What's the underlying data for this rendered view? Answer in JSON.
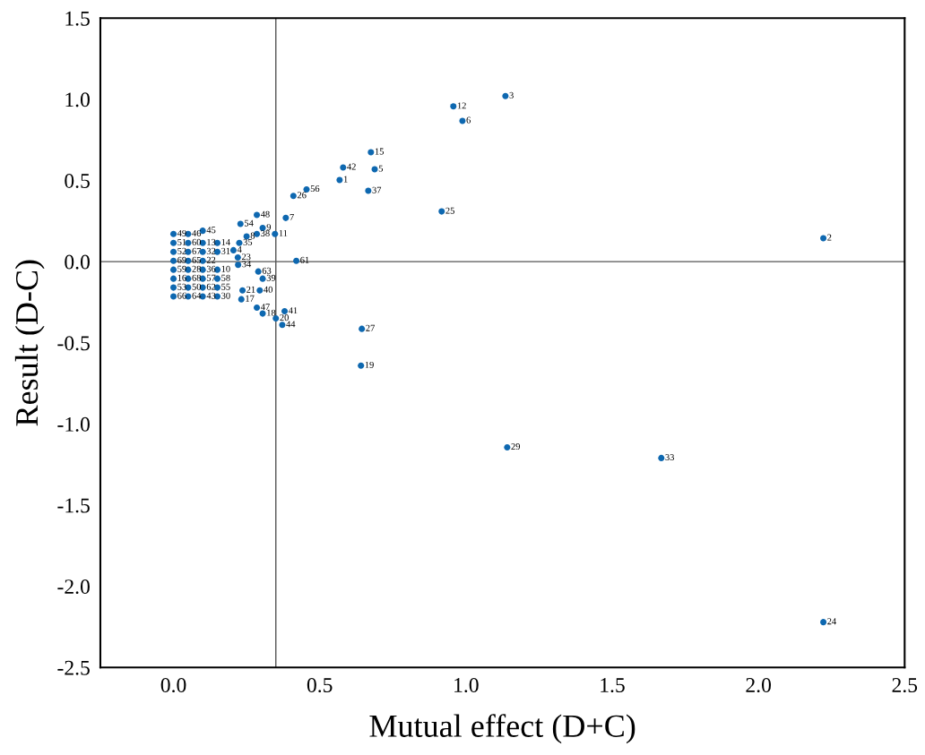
{
  "chart_data": {
    "type": "scatter",
    "xlabel": "Mutual effect (D+C)",
    "ylabel": "Result (D-C)",
    "xlim": [
      -0.25,
      2.5
    ],
    "ylim": [
      -2.5,
      1.5
    ],
    "xticks": [
      {
        "value": 0,
        "label": "0.0"
      },
      {
        "value": 0.5,
        "label": "0.5"
      },
      {
        "value": 1,
        "label": "1.0"
      },
      {
        "value": 1.5,
        "label": "1.5"
      },
      {
        "value": 2,
        "label": "2.0"
      },
      {
        "value": 2.5,
        "label": "2.5"
      }
    ],
    "yticks": [
      {
        "value": -2.5,
        "label": "-2.5"
      },
      {
        "value": -2,
        "label": "-2.0"
      },
      {
        "value": -1.5,
        "label": "-1.5"
      },
      {
        "value": -1,
        "label": "-1.0"
      },
      {
        "value": -0.5,
        "label": "-0.5"
      },
      {
        "value": 0,
        "label": "0.0"
      },
      {
        "value": 0.5,
        "label": "0.5"
      },
      {
        "value": 1,
        "label": "1.0"
      },
      {
        "value": 1.5,
        "label": "1.5"
      }
    ],
    "grid": false,
    "legend": false,
    "marker": "circle",
    "ref_lines": [
      {
        "axis": "x",
        "value": 0.35,
        "color": "#555555"
      },
      {
        "axis": "y",
        "value": 0,
        "color": "#555555"
      }
    ],
    "series": [
      {
        "color": "#0e68b0",
        "x": [
          0.568,
          2.222,
          1.135,
          0.205,
          0.688,
          0.988,
          0.384,
          0.25,
          0.305,
          0.15,
          0.347,
          0.957,
          0.1,
          0.15,
          0.675,
          0.0,
          0.232,
          0.305,
          0.641,
          0.35,
          0.236,
          0.1,
          0.22,
          2.222,
          0.917,
          0.41,
          0.644,
          0.05,
          1.141,
          0.15,
          0.15,
          0.1,
          1.668,
          0.221,
          0.225,
          0.1,
          0.666,
          0.285,
          0.305,
          0.295,
          0.38,
          0.58,
          0.1,
          0.372,
          0.1,
          0.05,
          0.285,
          0.285,
          0.0,
          0.05,
          0.0,
          0.0,
          0.0,
          0.229,
          0.15,
          0.455,
          0.1,
          0.15,
          0.0,
          0.05,
          0.42,
          0.1,
          0.29,
          0.05,
          0.05,
          0.0,
          0.05,
          0.05,
          0.0
        ],
        "values": [
          0.503,
          0.144,
          1.02,
          0.07,
          0.569,
          0.867,
          0.269,
          0.155,
          0.207,
          -0.05,
          0.17,
          0.956,
          0.115,
          0.115,
          0.674,
          -0.105,
          -0.232,
          -0.32,
          -0.641,
          -0.35,
          -0.177,
          0.005,
          0.025,
          -2.221,
          0.309,
          0.405,
          -0.414,
          -0.05,
          -1.144,
          -0.215,
          0.06,
          0.06,
          -1.21,
          -0.02,
          0.115,
          -0.05,
          0.436,
          0.17,
          -0.105,
          -0.177,
          -0.306,
          0.58,
          -0.215,
          -0.39,
          0.19,
          0.17,
          -0.284,
          0.287,
          0.17,
          -0.16,
          0.115,
          0.06,
          -0.16,
          0.232,
          -0.16,
          0.445,
          -0.105,
          -0.105,
          -0.05,
          0.115,
          0.005,
          -0.16,
          -0.061,
          -0.215,
          0.005,
          -0.215,
          0.06,
          -0.105,
          0.005
        ]
      }
    ],
    "annotations": [
      {
        "text": "1",
        "x": 0.568,
        "y": 0.503
      },
      {
        "text": "2",
        "x": 2.222,
        "y": 0.144
      },
      {
        "text": "3",
        "x": 1.135,
        "y": 1.02
      },
      {
        "text": "4",
        "x": 0.205,
        "y": 0.07
      },
      {
        "text": "5",
        "x": 0.688,
        "y": 0.569
      },
      {
        "text": "6",
        "x": 0.988,
        "y": 0.867
      },
      {
        "text": "7",
        "x": 0.384,
        "y": 0.269
      },
      {
        "text": "8",
        "x": 0.25,
        "y": 0.155
      },
      {
        "text": "9",
        "x": 0.305,
        "y": 0.207
      },
      {
        "text": "10",
        "x": 0.15,
        "y": -0.05
      },
      {
        "text": "11",
        "x": 0.347,
        "y": 0.17
      },
      {
        "text": "12",
        "x": 0.957,
        "y": 0.956
      },
      {
        "text": "13",
        "x": 0.1,
        "y": 0.115
      },
      {
        "text": "14",
        "x": 0.15,
        "y": 0.115
      },
      {
        "text": "15",
        "x": 0.675,
        "y": 0.674
      },
      {
        "text": "16",
        "x": 0.0,
        "y": -0.105
      },
      {
        "text": "17",
        "x": 0.232,
        "y": -0.232
      },
      {
        "text": "18",
        "x": 0.305,
        "y": -0.32
      },
      {
        "text": "19",
        "x": 0.641,
        "y": -0.641
      },
      {
        "text": "20",
        "x": 0.35,
        "y": -0.35
      },
      {
        "text": "21",
        "x": 0.236,
        "y": -0.177
      },
      {
        "text": "22",
        "x": 0.1,
        "y": 0.005
      },
      {
        "text": "23",
        "x": 0.22,
        "y": 0.025
      },
      {
        "text": "24",
        "x": 2.222,
        "y": -2.221
      },
      {
        "text": "25",
        "x": 0.917,
        "y": 0.309
      },
      {
        "text": "26",
        "x": 0.41,
        "y": 0.405
      },
      {
        "text": "27",
        "x": 0.644,
        "y": -0.414
      },
      {
        "text": "28",
        "x": 0.05,
        "y": -0.05
      },
      {
        "text": "29",
        "x": 1.141,
        "y": -1.144
      },
      {
        "text": "30",
        "x": 0.15,
        "y": -0.215
      },
      {
        "text": "31",
        "x": 0.15,
        "y": 0.06
      },
      {
        "text": "32",
        "x": 0.1,
        "y": 0.06
      },
      {
        "text": "33",
        "x": 1.668,
        "y": -1.21
      },
      {
        "text": "34",
        "x": 0.221,
        "y": -0.02
      },
      {
        "text": "35",
        "x": 0.225,
        "y": 0.115
      },
      {
        "text": "36",
        "x": 0.1,
        "y": -0.05
      },
      {
        "text": "37",
        "x": 0.666,
        "y": 0.436
      },
      {
        "text": "38",
        "x": 0.285,
        "y": 0.17
      },
      {
        "text": "39",
        "x": 0.305,
        "y": -0.105
      },
      {
        "text": "40",
        "x": 0.295,
        "y": -0.177
      },
      {
        "text": "41",
        "x": 0.38,
        "y": -0.306
      },
      {
        "text": "42",
        "x": 0.58,
        "y": 0.58
      },
      {
        "text": "43",
        "x": 0.1,
        "y": -0.215
      },
      {
        "text": "44",
        "x": 0.372,
        "y": -0.39
      },
      {
        "text": "45",
        "x": 0.1,
        "y": 0.19
      },
      {
        "text": "46",
        "x": 0.05,
        "y": 0.17
      },
      {
        "text": "47",
        "x": 0.285,
        "y": -0.284
      },
      {
        "text": "48",
        "x": 0.285,
        "y": 0.287
      },
      {
        "text": "49",
        "x": 0.0,
        "y": 0.17
      },
      {
        "text": "50",
        "x": 0.05,
        "y": -0.16
      },
      {
        "text": "51",
        "x": 0.0,
        "y": 0.115
      },
      {
        "text": "52",
        "x": 0.0,
        "y": 0.06
      },
      {
        "text": "53",
        "x": 0.0,
        "y": -0.16
      },
      {
        "text": "54",
        "x": 0.229,
        "y": 0.232
      },
      {
        "text": "55",
        "x": 0.15,
        "y": -0.16
      },
      {
        "text": "56",
        "x": 0.455,
        "y": 0.445
      },
      {
        "text": "57",
        "x": 0.1,
        "y": -0.105
      },
      {
        "text": "58",
        "x": 0.15,
        "y": -0.105
      },
      {
        "text": "59",
        "x": 0.0,
        "y": -0.05
      },
      {
        "text": "60",
        "x": 0.05,
        "y": 0.115
      },
      {
        "text": "61",
        "x": 0.42,
        "y": 0.005
      },
      {
        "text": "62",
        "x": 0.1,
        "y": -0.16
      },
      {
        "text": "63",
        "x": 0.29,
        "y": -0.061
      },
      {
        "text": "64",
        "x": 0.05,
        "y": -0.215
      },
      {
        "text": "65",
        "x": 0.05,
        "y": 0.005
      },
      {
        "text": "66",
        "x": 0.0,
        "y": -0.215
      },
      {
        "text": "67",
        "x": 0.05,
        "y": 0.06
      },
      {
        "text": "68",
        "x": 0.05,
        "y": -0.105
      },
      {
        "text": "69",
        "x": 0.0,
        "y": 0.005
      }
    ]
  }
}
